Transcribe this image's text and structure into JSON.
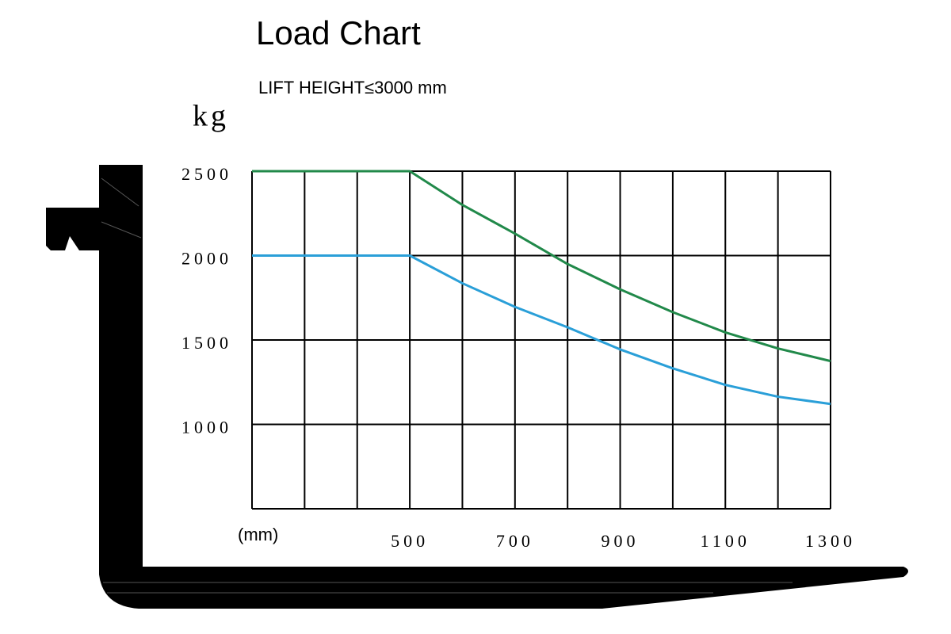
{
  "chart_data": {
    "type": "line",
    "title": "Load Chart",
    "subtitle": "LIFT HEIGHT≤3000 mm",
    "y_label": "kg",
    "x_label": "(mm)",
    "x": [
      200,
      300,
      400,
      500,
      600,
      700,
      800,
      900,
      1000,
      1100,
      1200,
      1300
    ],
    "series": [
      {
        "color": "#21894a",
        "values": [
          2500,
          2500,
          2500,
          2500,
          2300,
          2130,
          1950,
          1800,
          1665,
          1545,
          1450,
          1375
        ]
      },
      {
        "color": "#2a9fd8",
        "values": [
          2000,
          2000,
          2000,
          2000,
          1836,
          1696,
          1575,
          1444,
          1332,
          1234,
          1164,
          1121
        ]
      }
    ],
    "xlim": [
      200,
      1300
    ],
    "xticks": [
      500,
      700,
      900,
      1100,
      1300
    ],
    "xgrid": [
      200,
      300,
      400,
      500,
      600,
      700,
      800,
      900,
      1000,
      1100,
      1200,
      1300
    ],
    "ylim": [
      500,
      2500
    ],
    "yticks": [
      1000,
      1500,
      2000,
      2500
    ],
    "grid": true
  }
}
